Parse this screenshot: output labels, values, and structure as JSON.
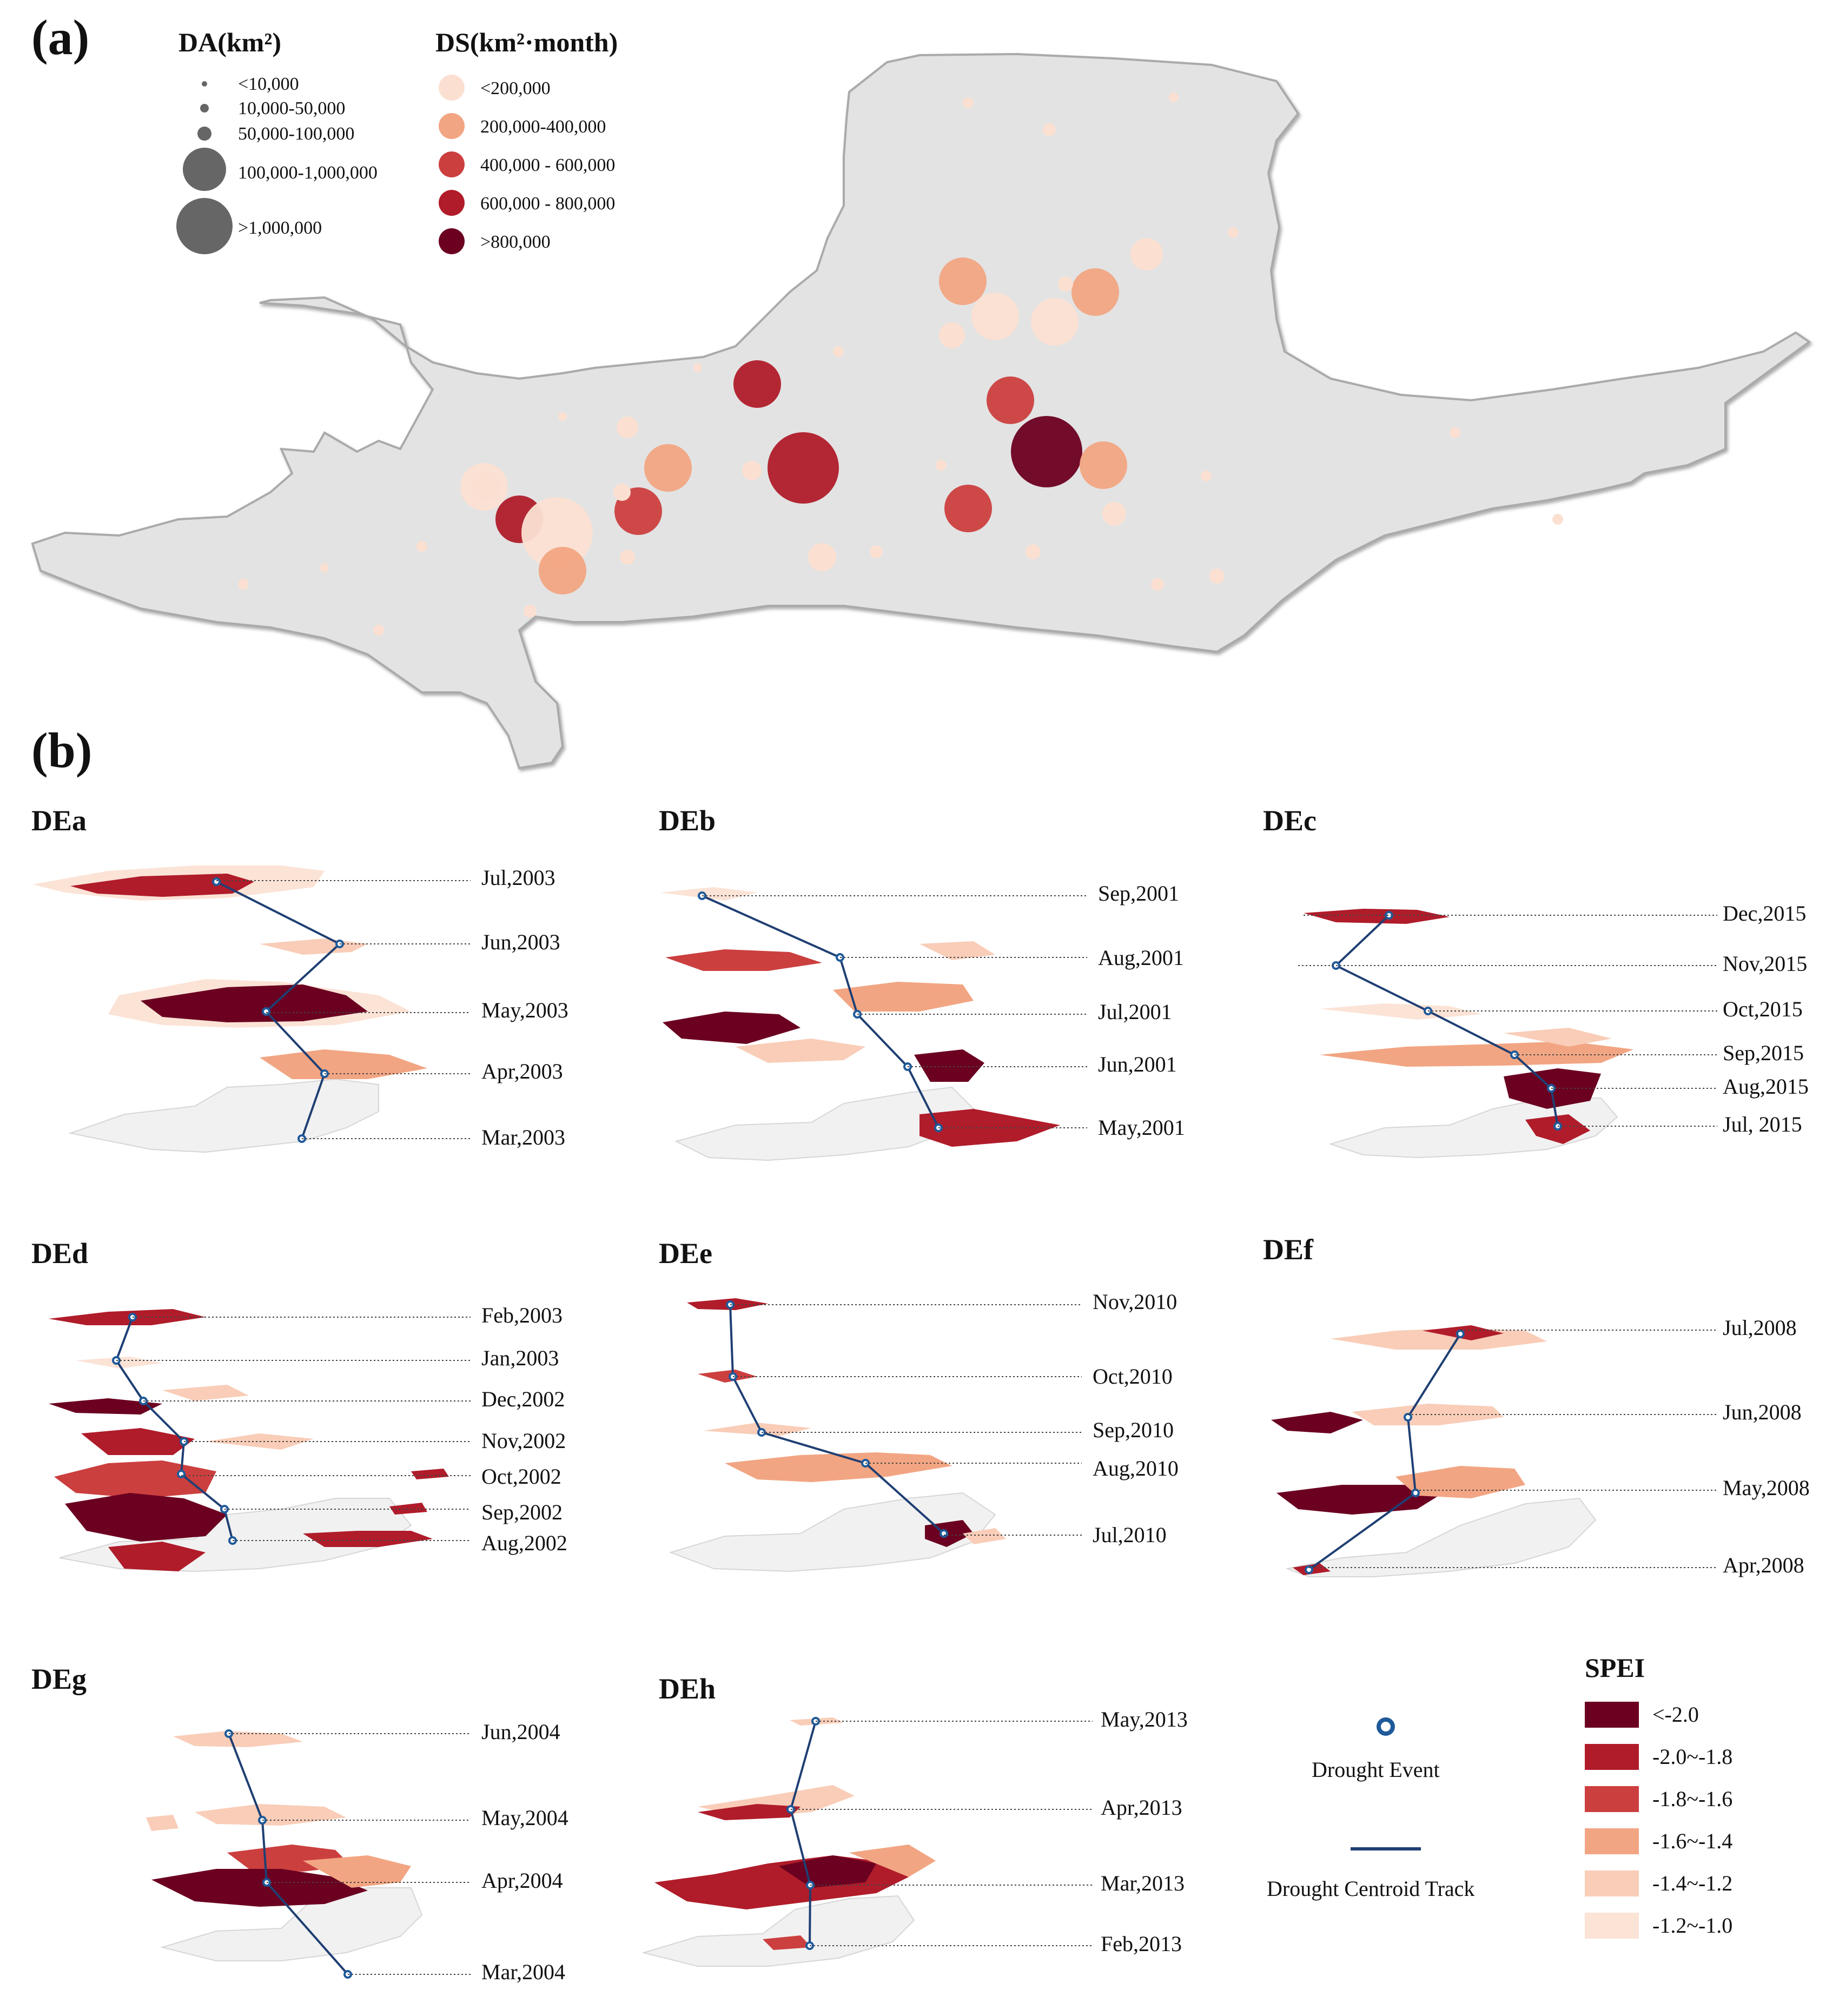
{
  "panel_a": {
    "label": "(a)",
    "da_legend": {
      "title": "DA(km²)",
      "classes": [
        "<10,000",
        "10,000-50,000",
        "50,000-100,000",
        "100,000-1,000,000",
        ">1,000,000"
      ]
    },
    "ds_legend": {
      "title": "DS(km²·month)",
      "classes": [
        {
          "label": "<200,000",
          "color": "#fbe0d2"
        },
        {
          "label": "200,000-400,000",
          "color": "#f2a582"
        },
        {
          "label": "400,000 - 600,000",
          "color": "#cc3f3f"
        },
        {
          "label": "600,000 - 800,000",
          "color": "#b01c2a"
        },
        {
          "label": ">800,000",
          "color": "#6b0020"
        }
      ]
    },
    "basin_color": "#e3e3e3",
    "events": [
      {
        "da": 4,
        "ds": 4
      },
      {
        "da": 5,
        "ds": 4
      },
      {
        "da": 4,
        "ds": 3
      },
      {
        "da": 5,
        "ds": 5
      },
      {
        "da": 4,
        "ds": 4
      },
      {
        "da": 4,
        "ds": 3
      },
      {
        "da": 5,
        "ds": 1
      },
      {
        "da": 4,
        "ds": 3
      },
      {
        "da": 4,
        "ds": 2
      },
      {
        "da": 4,
        "ds": 2
      },
      {
        "da": 4,
        "ds": 2
      },
      {
        "da": 4,
        "ds": 2
      },
      {
        "da": 4,
        "ds": 1
      },
      {
        "da": 4,
        "ds": 1
      },
      {
        "da": 4,
        "ds": 1
      },
      {
        "da": 4,
        "ds": 2
      }
    ]
  },
  "panel_b": {
    "label": "(b)",
    "events": [
      {
        "id": "DEa",
        "dates": [
          "Jul,2003",
          "Jun,2003",
          "May,2003",
          "Apr,2003",
          "Mar,2003"
        ]
      },
      {
        "id": "DEb",
        "dates": [
          "Sep,2001",
          "Aug,2001",
          "Jul,2001",
          "Jun,2001",
          "May,2001"
        ]
      },
      {
        "id": "DEc",
        "dates": [
          "Dec,2015",
          "Nov,2015",
          "Oct,2015",
          "Sep,2015",
          "Aug,2015",
          "Jul, 2015"
        ]
      },
      {
        "id": "DEd",
        "dates": [
          "Feb,2003",
          "Jan,2003",
          "Dec,2002",
          "Nov,2002",
          "Oct,2002",
          "Sep,2002",
          "Aug,2002"
        ]
      },
      {
        "id": "DEe",
        "dates": [
          "Nov,2010",
          "Oct,2010",
          "Sep,2010",
          "Aug,2010",
          "Jul,2010"
        ]
      },
      {
        "id": "DEf",
        "dates": [
          "Jul,2008",
          "Jun,2008",
          "May,2008",
          "Apr,2008"
        ]
      },
      {
        "id": "DEg",
        "dates": [
          "Jun,2004",
          "May,2004",
          "Apr,2004",
          "Mar,2004"
        ]
      },
      {
        "id": "DEh",
        "dates": [
          "May,2013",
          "Apr,2013",
          "Mar,2013",
          "Feb,2013"
        ]
      }
    ],
    "legend": {
      "drought_event": "Drought Event",
      "centroid_track": "Drought Centroid Track",
      "spei_title": "SPEI",
      "spei_classes": [
        {
          "label": "<-2.0",
          "color": "#6b0020"
        },
        {
          "label": "-2.0~-1.8",
          "color": "#b01c2a"
        },
        {
          "label": "-1.8~-1.6",
          "color": "#cc3f3f"
        },
        {
          "label": "-1.6~-1.4",
          "color": "#f2a582"
        },
        {
          "label": "-1.4~-1.2",
          "color": "#f9cdb8"
        },
        {
          "label": "-1.2~-1.0",
          "color": "#fbe3d6"
        }
      ],
      "track_color": "#1f3f73",
      "event_marker_color": "#1f5a9a"
    }
  }
}
